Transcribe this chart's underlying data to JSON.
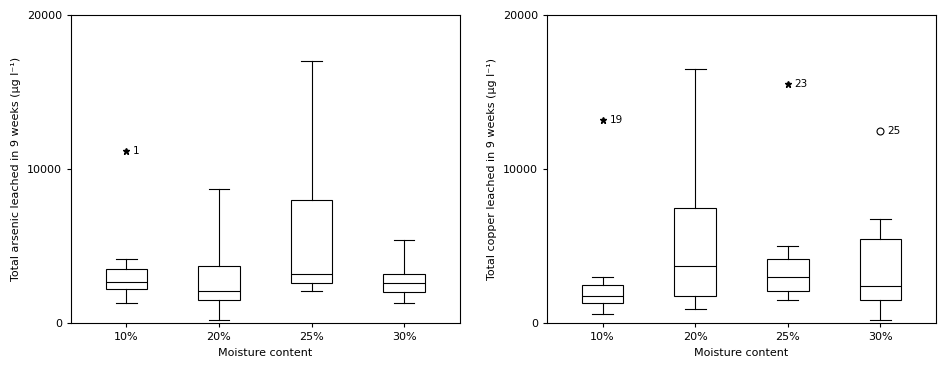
{
  "arsenic": {
    "ylabel": "Total arsenic leached in 9 weeks (μg l⁻¹)",
    "xlabel": "Moisture content",
    "ylim": [
      0,
      20000
    ],
    "yticks": [
      0,
      10000,
      20000
    ],
    "xtick_labels": [
      "10%",
      "20%",
      "25%",
      "30%"
    ],
    "boxes": [
      {
        "whislo": 1300,
        "q1": 2200,
        "med": 2700,
        "q3": 3500,
        "whishi": 4200,
        "fliers": [
          11200
        ],
        "flier_markers": [
          "*"
        ],
        "flier_labels": [
          "1"
        ]
      },
      {
        "whislo": 200,
        "q1": 1500,
        "med": 2100,
        "q3": 3700,
        "whishi": 8700,
        "fliers": [],
        "flier_markers": [],
        "flier_labels": []
      },
      {
        "whislo": 2100,
        "q1": 2600,
        "med": 3200,
        "q3": 8000,
        "whishi": 17000,
        "fliers": [],
        "flier_markers": [],
        "flier_labels": []
      },
      {
        "whislo": 1300,
        "q1": 2000,
        "med": 2600,
        "q3": 3200,
        "whishi": 5400,
        "fliers": [],
        "flier_markers": [],
        "flier_labels": []
      }
    ]
  },
  "copper": {
    "ylabel": "Total copper leached in 9 weeks (μg l⁻¹)",
    "xlabel": "Moisture content",
    "ylim": [
      0,
      20000
    ],
    "yticks": [
      0,
      10000,
      20000
    ],
    "xtick_labels": [
      "10%",
      "20%",
      "25%",
      "30%"
    ],
    "boxes": [
      {
        "whislo": 600,
        "q1": 1300,
        "med": 1800,
        "q3": 2500,
        "whishi": 3000,
        "fliers": [
          13200
        ],
        "flier_markers": [
          "*"
        ],
        "flier_labels": [
          "19"
        ]
      },
      {
        "whislo": 900,
        "q1": 1800,
        "med": 3700,
        "q3": 7500,
        "whishi": 16500,
        "fliers": [],
        "flier_markers": [],
        "flier_labels": []
      },
      {
        "whislo": 1500,
        "q1": 2100,
        "med": 3000,
        "q3": 4200,
        "whishi": 5000,
        "fliers": [
          15500
        ],
        "flier_markers": [
          "*"
        ],
        "flier_labels": [
          "23"
        ]
      },
      {
        "whislo": 200,
        "q1": 1500,
        "med": 2400,
        "q3": 5500,
        "whishi": 6800,
        "fliers": [
          12500
        ],
        "flier_markers": [
          "o"
        ],
        "flier_labels": [
          "25"
        ]
      }
    ]
  },
  "box_width": 0.45,
  "linewidth": 0.8,
  "fontsize_label": 8,
  "fontsize_tick": 8,
  "fontsize_annotation": 7.5,
  "figure_facecolor": "#ffffff",
  "box_facecolor": "#ffffff",
  "box_edgecolor": "#000000"
}
